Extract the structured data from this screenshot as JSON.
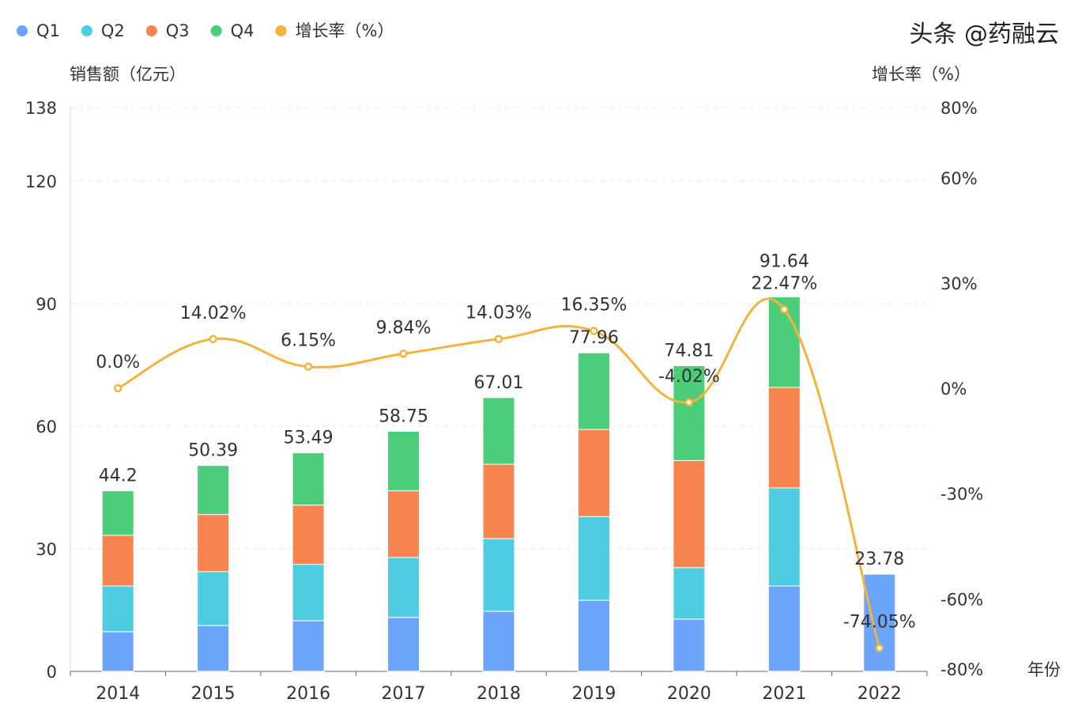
{
  "chart_data": {
    "type": "bar",
    "categories": [
      "2014",
      "2015",
      "2016",
      "2017",
      "2018",
      "2019",
      "2020",
      "2021",
      "2022"
    ],
    "series": [
      {
        "name": "Q1",
        "type": "bar",
        "stack": "total",
        "color": "#6aa5fb",
        "values": [
          9.7,
          11.2,
          12.4,
          13.2,
          14.7,
          17.4,
          12.8,
          20.9,
          23.78
        ]
      },
      {
        "name": "Q2",
        "type": "bar",
        "stack": "total",
        "color": "#4fcde0",
        "values": [
          11.2,
          13.2,
          13.8,
          14.7,
          17.8,
          20.5,
          12.6,
          24.0,
          null
        ]
      },
      {
        "name": "Q3",
        "type": "bar",
        "stack": "total",
        "color": "#f7844f",
        "values": [
          12.4,
          14.0,
          14.5,
          16.3,
          18.2,
          21.3,
          26.2,
          24.6,
          null
        ]
      },
      {
        "name": "Q4",
        "type": "bar",
        "stack": "total",
        "color": "#4ccd7a",
        "values": [
          10.9,
          11.99,
          12.79,
          14.55,
          16.31,
          18.76,
          23.21,
          22.14,
          null
        ]
      },
      {
        "name": "增长率（%）",
        "type": "line",
        "axis": "right",
        "smooth": true,
        "color": "#f2b33c",
        "values": [
          0.0,
          14.02,
          6.15,
          9.84,
          14.03,
          16.35,
          -4.02,
          22.47,
          -74.05
        ]
      }
    ],
    "totals": [
      44.2,
      50.39,
      53.49,
      58.75,
      67.01,
      77.96,
      74.81,
      91.64,
      23.78
    ],
    "total_labels": [
      "44.2",
      "50.39",
      "53.49",
      "58.75",
      "67.01",
      "77.96",
      "74.81",
      "91.64",
      "23.78"
    ],
    "rate_labels": [
      "0.0%",
      "14.02%",
      "6.15%",
      "9.84%",
      "14.03%",
      "16.35%",
      "-4.02%",
      "22.47%",
      "-74.05%"
    ],
    "ylabel": "销售额（亿元）",
    "ylabel_right": "增长率（%）",
    "xlabel": "年份",
    "ylim": [
      0,
      138
    ],
    "yticks": [
      "0",
      "30",
      "60",
      "90",
      "120",
      "138"
    ],
    "ylim_right": [
      -80,
      80
    ],
    "yticks_right": [
      "-80%",
      "-60%",
      "-30%",
      "0%",
      "30%",
      "60%",
      "80%"
    ],
    "grid": true,
    "legend_placement": "top-left",
    "legend": [
      "Q1",
      "Q2",
      "Q3",
      "Q4",
      "增长率（%）"
    ]
  },
  "watermark": "头条 @药融云"
}
